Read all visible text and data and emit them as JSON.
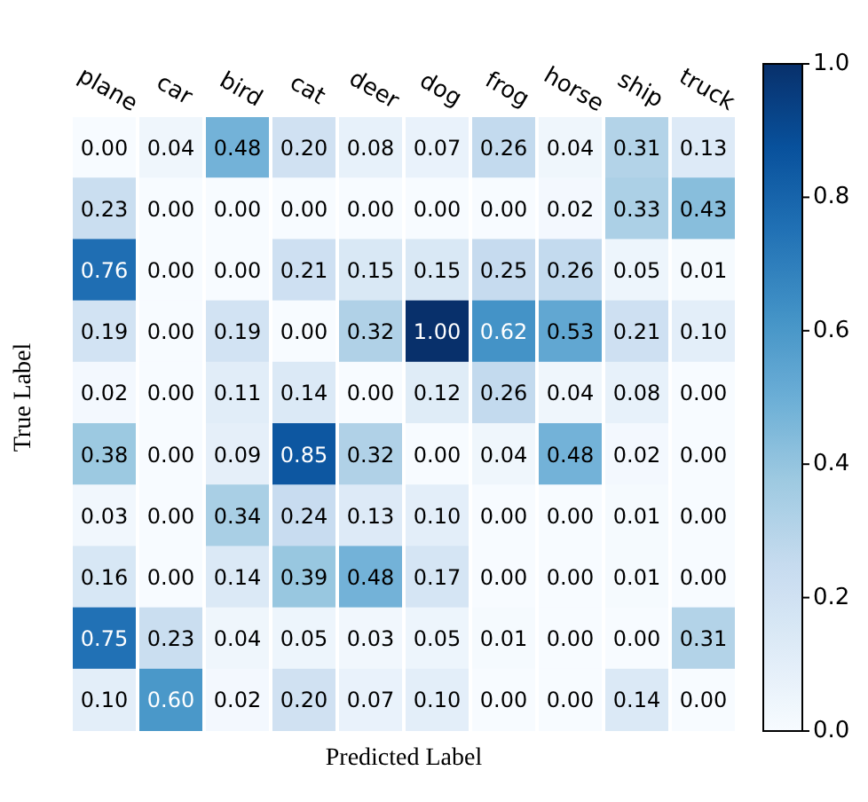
{
  "chart_data": {
    "type": "heatmap",
    "xlabel": "Predicted Label",
    "ylabel": "True Label",
    "categories": [
      "plane",
      "car",
      "bird",
      "cat",
      "deer",
      "dog",
      "frog",
      "horse",
      "ship",
      "truck"
    ],
    "y_categories": [
      null,
      null,
      null,
      null,
      null,
      null,
      null,
      null,
      null,
      null
    ],
    "cells": [
      [
        0.0,
        0.04,
        0.48,
        0.2,
        0.08,
        0.07,
        0.26,
        0.04,
        0.31,
        0.13
      ],
      [
        0.23,
        0.0,
        0.0,
        0.0,
        0.0,
        0.0,
        0.0,
        0.02,
        0.33,
        0.43
      ],
      [
        0.76,
        0.0,
        0.0,
        0.21,
        0.15,
        0.15,
        0.25,
        0.26,
        0.05,
        0.01
      ],
      [
        0.19,
        0.0,
        0.19,
        0.0,
        0.32,
        1.0,
        0.62,
        0.53,
        0.21,
        0.1
      ],
      [
        0.02,
        0.0,
        0.11,
        0.14,
        0.0,
        0.12,
        0.26,
        0.04,
        0.08,
        0.0
      ],
      [
        0.38,
        0.0,
        0.09,
        0.85,
        0.32,
        0.0,
        0.04,
        0.48,
        0.02,
        0.0
      ],
      [
        0.03,
        0.0,
        0.34,
        0.24,
        0.13,
        0.1,
        0.0,
        0.0,
        0.01,
        0.0
      ],
      [
        0.16,
        0.0,
        0.14,
        0.39,
        0.48,
        0.17,
        0.0,
        0.0,
        0.01,
        0.0
      ],
      [
        0.75,
        0.23,
        0.04,
        0.05,
        0.03,
        0.05,
        0.01,
        0.0,
        0.0,
        0.31
      ],
      [
        0.1,
        0.6,
        0.02,
        0.2,
        0.07,
        0.1,
        0.0,
        0.0,
        0.14,
        0.0
      ]
    ],
    "cell_labels": [
      [
        "0.00",
        "0.04",
        "0.48",
        "0.20",
        "0.08",
        "0.07",
        "0.26",
        "0.04",
        "0.31",
        "0.13"
      ],
      [
        "0.23",
        "0.00",
        "0.00",
        "0.00",
        "0.00",
        "0.00",
        "0.00",
        "0.02",
        "0.33",
        "0.43"
      ],
      [
        "0.76",
        "0.00",
        "0.00",
        "0.21",
        "0.15",
        "0.15",
        "0.25",
        "0.26",
        "0.05",
        "0.01"
      ],
      [
        "0.19",
        "0.00",
        "0.19",
        "0.00",
        "0.32",
        "1.00",
        "0.62",
        "0.53",
        "0.21",
        "0.10"
      ],
      [
        "0.02",
        "0.00",
        "0.11",
        "0.14",
        "0.00",
        "0.12",
        "0.26",
        "0.04",
        "0.08",
        "0.00"
      ],
      [
        "0.38",
        "0.00",
        "0.09",
        "0.85",
        "0.32",
        "0.00",
        "0.04",
        "0.48",
        "0.02",
        "0.00"
      ],
      [
        "0.03",
        "0.00",
        "0.34",
        "0.24",
        "0.13",
        "0.10",
        "0.00",
        "0.00",
        "0.01",
        "0.00"
      ],
      [
        "0.16",
        "0.00",
        "0.14",
        "0.39",
        "0.48",
        "0.17",
        "0.00",
        "0.00",
        "0.01",
        "0.00"
      ],
      [
        "0.75",
        "0.23",
        "0.04",
        "0.05",
        "0.03",
        "0.05",
        "0.01",
        "0.00",
        "0.00",
        "0.31"
      ],
      [
        "0.10",
        "0.60",
        "0.02",
        "0.20",
        "0.07",
        "0.10",
        "0.00",
        "0.00",
        "0.14",
        "0.00"
      ]
    ],
    "clim": [
      0,
      1
    ],
    "cticks": [
      {
        "value": 0,
        "label": "0.0"
      },
      {
        "value": 0.2,
        "label": "0.2"
      },
      {
        "value": 0.4,
        "label": "0.4"
      },
      {
        "value": 0.6,
        "label": "0.6"
      },
      {
        "value": 0.8,
        "label": "0.8"
      },
      {
        "value": 1,
        "label": "1.0"
      }
    ]
  }
}
